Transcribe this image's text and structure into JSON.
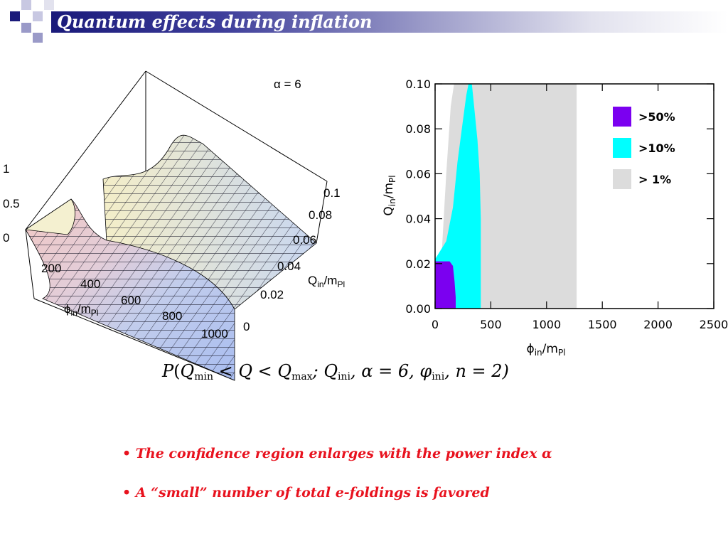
{
  "slide": {
    "title": "Quantum effects during inflation",
    "bullets": [
      "• The confidence region enlarges with the power index α",
      "• A “small” number of total e-foldings is favored"
    ],
    "colors": {
      "title_band": "#1a1a7a",
      "bullet_text": "#e8121e"
    }
  },
  "formula": {
    "P": "P",
    "open": "(",
    "Q1": "Q",
    "min": "min",
    "lt1": " < Q < ",
    "Q2": "Q",
    "max": "max",
    "semi": "; ",
    "Q3": "Q",
    "ini1": "ini",
    "alpha": ", α = 6, ",
    "phi": "φ",
    "ini2": "ini",
    "tail": ", n = 2)"
  },
  "surface_plot": {
    "annotation": "α = 6",
    "z_ticks": [
      "1",
      "0.5",
      "0"
    ],
    "phi_ticks": [
      "200",
      "400",
      "600",
      "800",
      "1000"
    ],
    "q_ticks": [
      "0.1",
      "0.08",
      "0.06",
      "0.04",
      "0.02",
      "0"
    ],
    "phi_label": "ϕ",
    "phi_sub": "in",
    "phi_rest": "/m",
    "phi_sub2": "Pl",
    "q_label": "Q",
    "q_sub": "in",
    "q_rest": "/m",
    "q_sub2": "Pl"
  },
  "chart_data": {
    "type": "area",
    "xlabel": "ϕin/mPl",
    "ylabel": "Qin/mPl",
    "xlim": [
      0,
      2500
    ],
    "ylim": [
      0,
      0.1
    ],
    "x_ticks": [
      "0",
      "500",
      "1000",
      "1500",
      "2000",
      "2500"
    ],
    "y_ticks": [
      "0.00",
      "0.02",
      "0.04",
      "0.06",
      "0.08",
      "0.10"
    ],
    "legend_position": "top-right",
    "series": [
      {
        "name": "> 1%",
        "color": "#dcdcdc",
        "polygon": [
          [
            0,
            0
          ],
          [
            0,
            0.022
          ],
          [
            60,
            0.025
          ],
          [
            100,
            0.06
          ],
          [
            140,
            0.09
          ],
          [
            170,
            0.1
          ],
          [
            1270,
            0.1
          ],
          [
            1270,
            0
          ]
        ]
      },
      {
        "name": ">10%",
        "color": "#00ffff",
        "polygon": [
          [
            0,
            0
          ],
          [
            0,
            0.022
          ],
          [
            100,
            0.03
          ],
          [
            160,
            0.045
          ],
          [
            200,
            0.065
          ],
          [
            240,
            0.08
          ],
          [
            280,
            0.095
          ],
          [
            300,
            0.1
          ],
          [
            330,
            0.1
          ],
          [
            350,
            0.09
          ],
          [
            380,
            0.075
          ],
          [
            400,
            0.06
          ],
          [
            410,
            0.04
          ],
          [
            410,
            0
          ]
        ]
      },
      {
        "name": ">50%",
        "color": "#7b00f0",
        "polygon": [
          [
            0,
            0
          ],
          [
            0,
            0.021
          ],
          [
            130,
            0.021
          ],
          [
            160,
            0.019
          ],
          [
            175,
            0.012
          ],
          [
            185,
            0.005
          ],
          [
            185,
            0
          ]
        ]
      }
    ]
  }
}
